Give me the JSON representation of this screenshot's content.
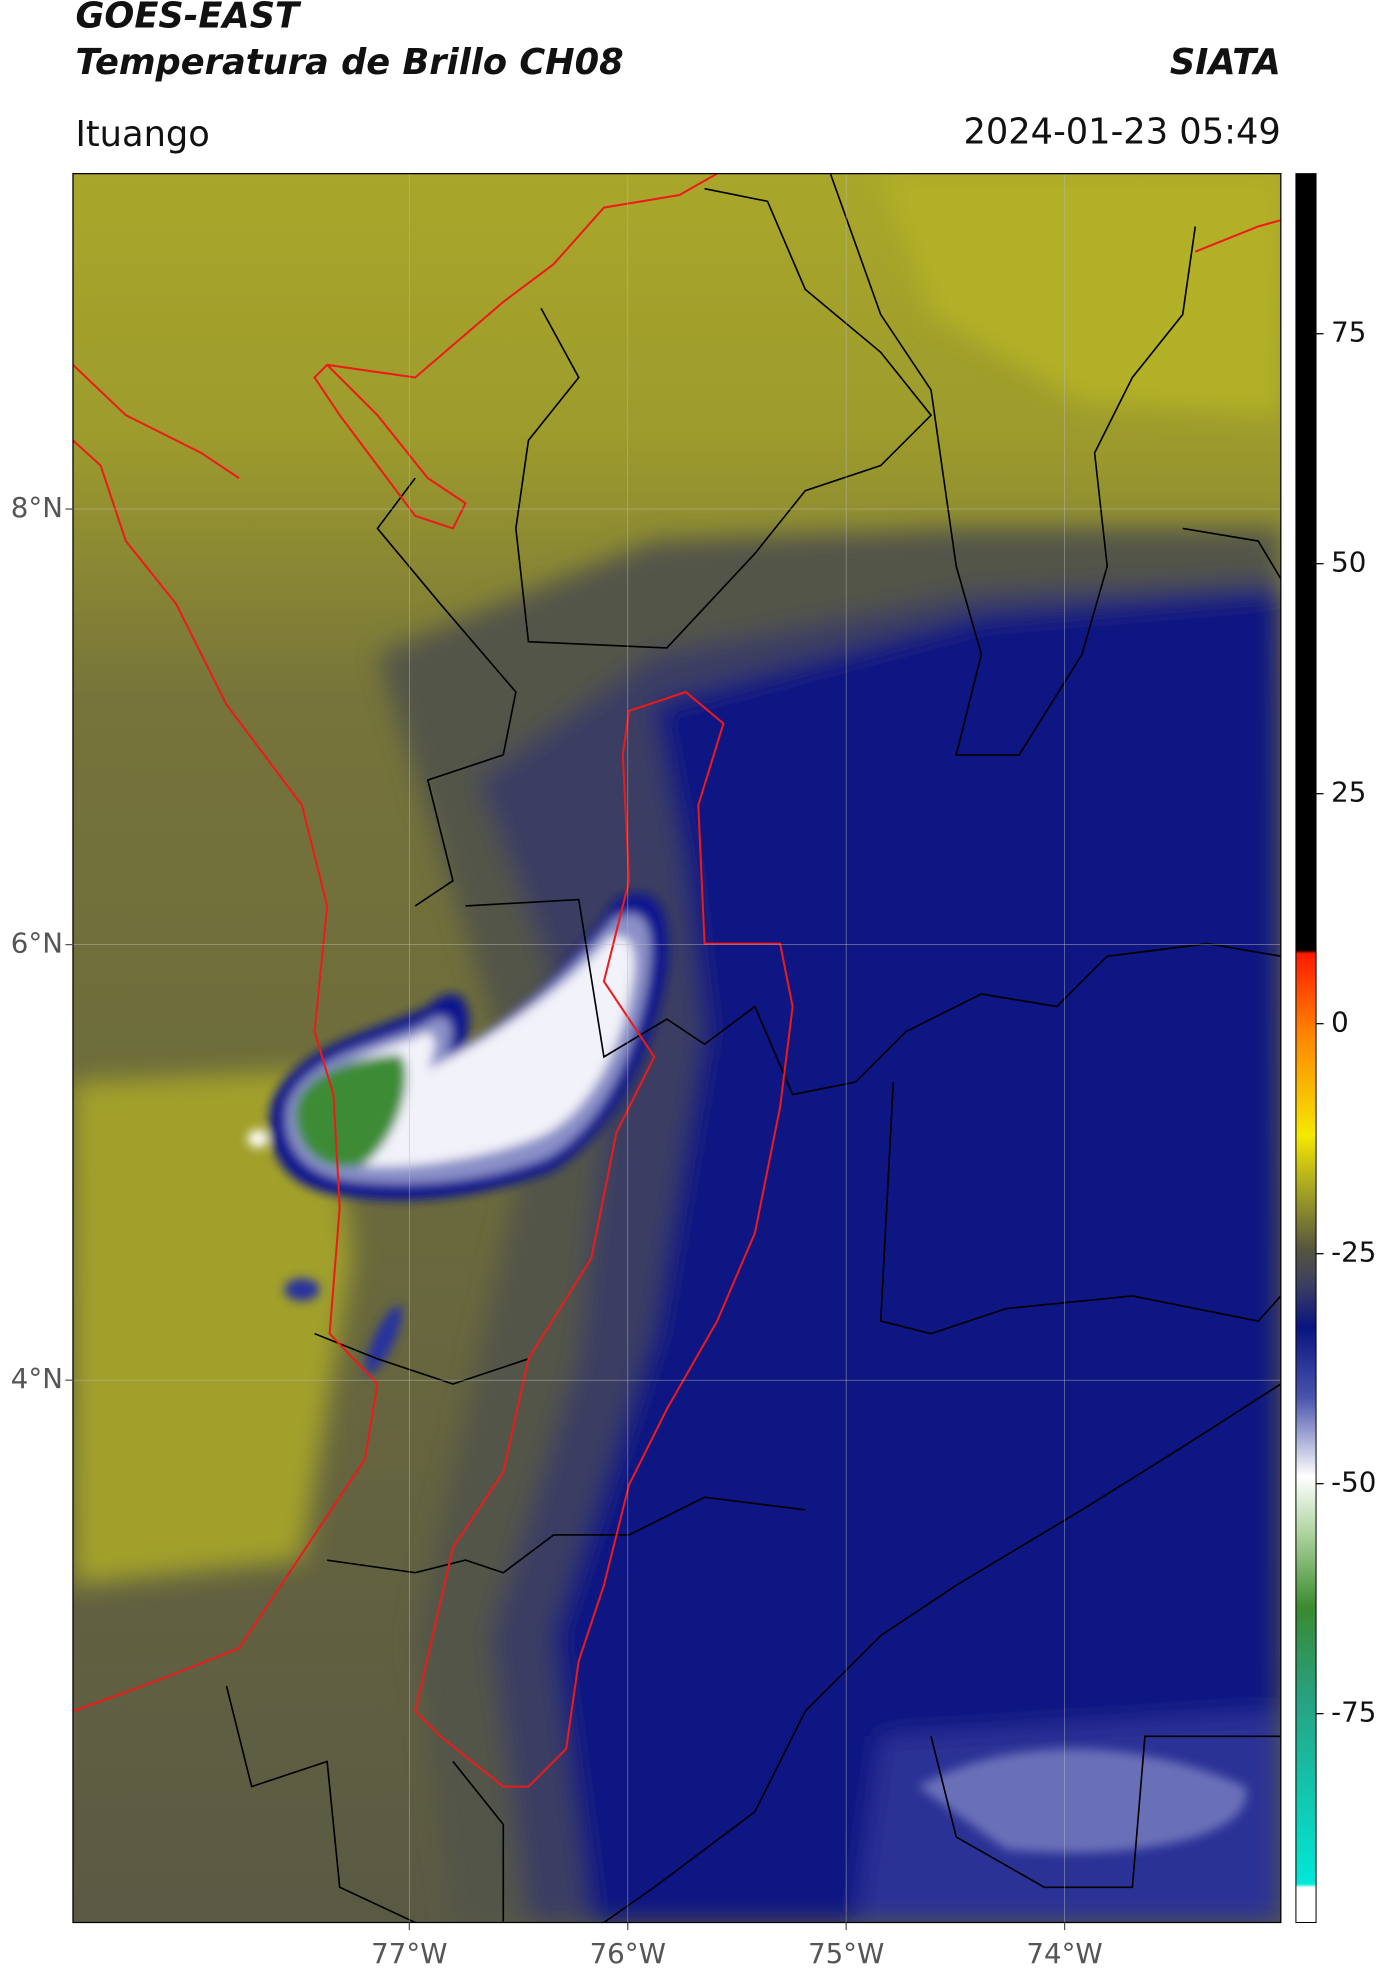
{
  "header": {
    "title": "GOES-EAST",
    "subtitle": "Temperatura de Brillo CH08",
    "source": "SIATA",
    "location": "Ituango",
    "datetime": "2024-01-23 05:49"
  },
  "map": {
    "xlim": [
      -78.54,
      -73.01
    ],
    "ylim": [
      1.51,
      9.54
    ],
    "xticks": [
      {
        "value": -77,
        "label": "77°W"
      },
      {
        "value": -76,
        "label": "76°W"
      },
      {
        "value": -75,
        "label": "75°W"
      },
      {
        "value": -74,
        "label": "74°W"
      }
    ],
    "yticks": [
      {
        "value": 4,
        "label": "4°N"
      },
      {
        "value": 6,
        "label": "6°N"
      },
      {
        "value": 8,
        "label": "8°N"
      }
    ],
    "grid": true
  },
  "colorbar": {
    "lim": [
      -97.7,
      92.4
    ],
    "ticks": [
      -75,
      -50,
      -25,
      0,
      25,
      50,
      75
    ]
  }
}
